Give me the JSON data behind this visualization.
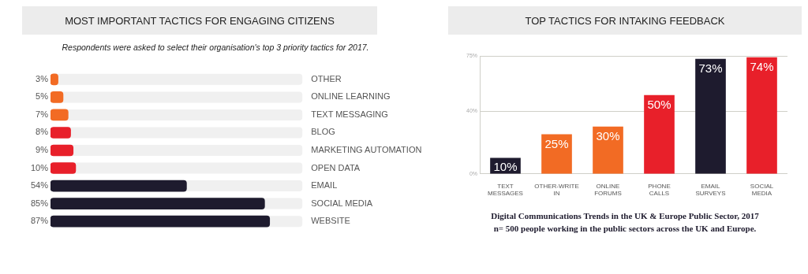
{
  "chart_data": [
    {
      "type": "bar",
      "title": "MOST IMPORTANT TACTICS FOR ENGAGING CITIZENS",
      "subtitle": "Respondents were asked to select their organisation's top 3 priority tactics for 2017.",
      "orientation": "horizontal",
      "categories": [
        "OTHER",
        "ONLINE LEARNING",
        "TEXT MESSAGING",
        "BLOG",
        "MARKETING AUTOMATION",
        "OPEN DATA",
        "EMAIL",
        "SOCIAL MEDIA",
        "WEBSITE"
      ],
      "values": [
        3,
        5,
        7,
        8,
        9,
        10,
        54,
        85,
        87
      ],
      "value_labels": [
        "3%",
        "5%",
        "7%",
        "8%",
        "9%",
        "10%",
        "54%",
        "85%",
        "87%"
      ],
      "colors": [
        "#f26b24",
        "#f26b24",
        "#f26b24",
        "#e8202a",
        "#e8202a",
        "#e8202a",
        "#1e1b2e",
        "#1e1b2e",
        "#1e1b2e"
      ],
      "xlim": [
        0,
        100
      ],
      "tick_labels": "y",
      "grid": false
    },
    {
      "type": "bar",
      "title": "TOP TACTICS FOR INTAKING FEEDBACK",
      "categories": [
        "TEXT MESSAGES",
        "OTHER-WRITE IN",
        "ONLINE FORUMS",
        "PHONE CALLS",
        "EMAIL SURVEYS",
        "SOCIAL MEDIA"
      ],
      "values": [
        10,
        25,
        30,
        50,
        73,
        74
      ],
      "value_labels": [
        "10%",
        "25%",
        "30%",
        "50%",
        "73%",
        "74%"
      ],
      "colors": [
        "#1e1b2e",
        "#f26b24",
        "#f26b24",
        "#e8202a",
        "#1e1b2e",
        "#e8202a"
      ],
      "ylim": [
        0,
        75
      ],
      "yticks": [
        {
          "value": 0,
          "label": "0%"
        },
        {
          "value": 40,
          "label": "40%"
        },
        {
          "value": 75,
          "label": "75%"
        }
      ],
      "grid": "y",
      "annotations": [
        "Digital Communications Trends in the UK & Europe Public Sector, 2017",
        "n= 500 people working in the public sectors across the UK and Europe."
      ]
    }
  ]
}
